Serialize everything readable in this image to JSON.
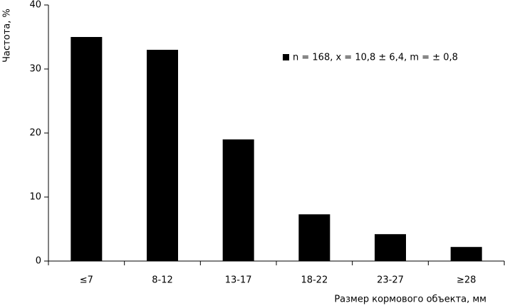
{
  "chart_data": {
    "type": "bar",
    "categories": [
      "≤7",
      "8-12",
      "13-17",
      "18-22",
      "23-27",
      "≥28"
    ],
    "series": [
      {
        "name": "n = 168, x = 10,8 ± 6,4, m = ± 0,8",
        "color": "#000000",
        "values": [
          35,
          33,
          19,
          7.3,
          4.2,
          2.2
        ]
      }
    ],
    "y_label": "Частота, %",
    "x_label": "Размер кормового объекта, мм",
    "ylim": [
      0,
      40
    ],
    "yticks": [
      0,
      10,
      20,
      30,
      40
    ],
    "grid": false
  }
}
